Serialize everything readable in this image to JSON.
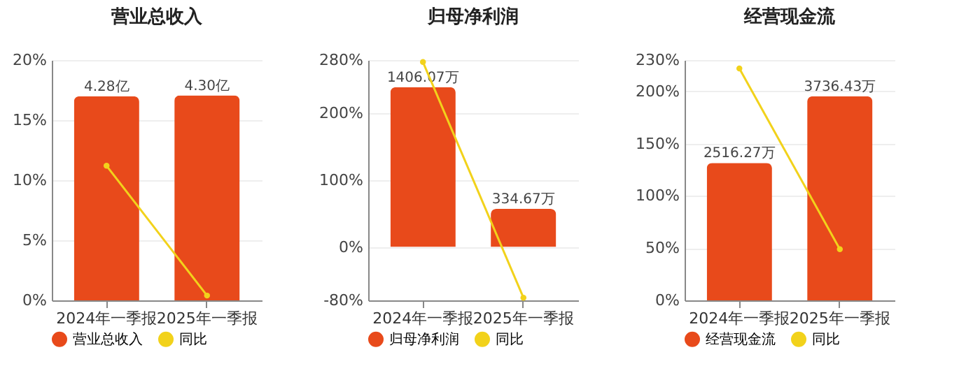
{
  "chart_data": [
    {
      "type": "bar",
      "title": "营业总收入",
      "categories": [
        "2024年一季报",
        "2025年一季报"
      ],
      "series": [
        {
          "name": "营业总收入",
          "axis": "y2",
          "color": "#e84a1b",
          "values": [
            4.28,
            4.3
          ],
          "value_labels": [
            "4.28亿",
            "4.30亿"
          ]
        },
        {
          "name": "同比",
          "type": "line",
          "color": "#f2d21b",
          "values": [
            11.2,
            0.4
          ]
        }
      ],
      "ylim": [
        0,
        20
      ],
      "yticks": [
        {
          "value": 0,
          "label": "0%"
        },
        {
          "value": 5,
          "label": "5%"
        },
        {
          "value": 10,
          "label": "10%"
        },
        {
          "value": 15,
          "label": "15%"
        },
        {
          "value": 20,
          "label": "20%"
        }
      ],
      "y2lim": [
        0,
        5.04
      ],
      "grid": "y",
      "legend": "bottom",
      "marker": "circle"
    },
    {
      "type": "bar",
      "title": "归母净利润",
      "categories": [
        "2024年一季报",
        "2025年一季报"
      ],
      "series": [
        {
          "name": "归母净利润",
          "axis": "y2",
          "color": "#e84a1b",
          "values": [
            1406.07,
            334.67
          ],
          "value_labels": [
            "1406.07万",
            "334.67万"
          ]
        },
        {
          "name": "同比",
          "type": "line",
          "color": "#f2d21b",
          "values": [
            277,
            -76
          ]
        }
      ],
      "ylim": [
        -80,
        280
      ],
      "yticks": [
        {
          "value": -80,
          "label": "-80%"
        },
        {
          "value": 0,
          "label": "0%"
        },
        {
          "value": 100,
          "label": "100%"
        },
        {
          "value": 200,
          "label": "200%"
        },
        {
          "value": 280,
          "label": "280%"
        }
      ],
      "y2lim": [
        -469.9,
        1644.4
      ],
      "grid": "y",
      "legend": "bottom",
      "marker": "circle"
    },
    {
      "type": "bar",
      "title": "经营现金流",
      "categories": [
        "2024年一季报",
        "2025年一季报"
      ],
      "series": [
        {
          "name": "经营现金流",
          "axis": "y2",
          "color": "#e84a1b",
          "values": [
            2516.27,
            3736.43
          ],
          "value_labels": [
            "2516.27万",
            "3736.43万"
          ]
        },
        {
          "name": "同比",
          "type": "line",
          "color": "#f2d21b",
          "values": [
            222,
            49
          ]
        }
      ],
      "ylim": [
        0,
        230
      ],
      "yticks": [
        {
          "value": 0,
          "label": "0%"
        },
        {
          "value": 50,
          "label": "50%"
        },
        {
          "value": 100,
          "label": "100%"
        },
        {
          "value": 150,
          "label": "150%"
        },
        {
          "value": 200,
          "label": "200%"
        },
        {
          "value": 230,
          "label": "230%"
        }
      ],
      "y2lim": [
        0,
        4398
      ],
      "grid": "y",
      "legend": "bottom",
      "marker": "circle"
    }
  ]
}
